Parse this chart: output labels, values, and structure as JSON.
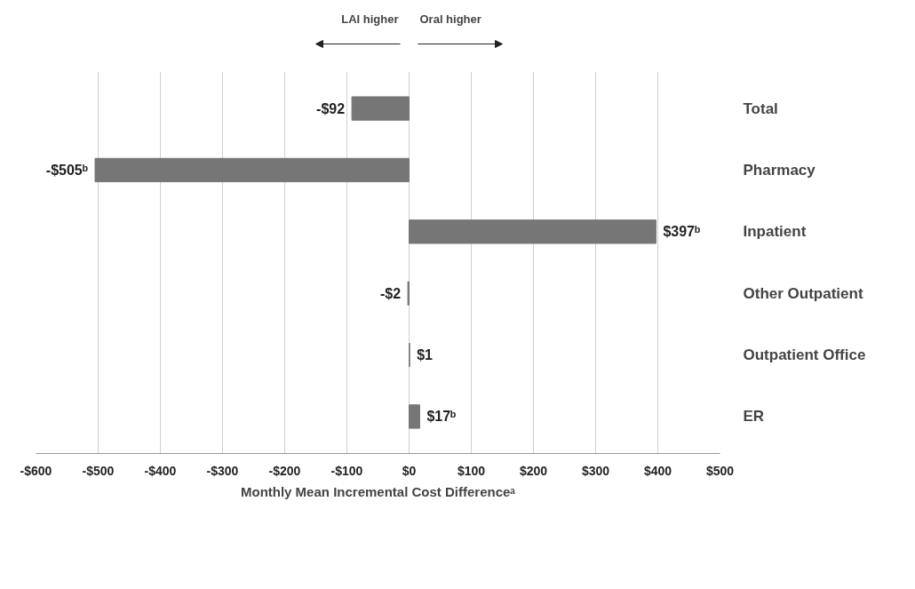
{
  "chart_data": {
    "type": "bar",
    "orientation": "horizontal",
    "xlabel": "Monthly Mean Incremental Cost Differenceᵃ",
    "categories": [
      "Total",
      "Pharmacy",
      "Inpatient",
      "Other Outpatient",
      "Outpatient Office",
      "ER"
    ],
    "values": [
      -92,
      -505,
      397,
      -2,
      1,
      17
    ],
    "value_labels": [
      "-$92",
      "-$505ᵇ",
      "$397ᵇ",
      "-$2",
      "$1",
      "$17ᵇ"
    ],
    "color": "#767676",
    "xlim": [
      -600,
      500
    ],
    "xticks": [
      {
        "value": -600,
        "label": "-$600"
      },
      {
        "value": -500,
        "label": "-$500"
      },
      {
        "value": -400,
        "label": "-$400"
      },
      {
        "value": -300,
        "label": "-$300"
      },
      {
        "value": -200,
        "label": "-$200"
      },
      {
        "value": -100,
        "label": "-$100"
      },
      {
        "value": 0,
        "label": "$0"
      },
      {
        "value": 100,
        "label": "$100"
      },
      {
        "value": 200,
        "label": "$200"
      },
      {
        "value": 300,
        "label": "$300"
      },
      {
        "value": 400,
        "label": "$400"
      },
      {
        "value": 500,
        "label": "$500"
      }
    ],
    "grid": "x",
    "annotations": [
      "LAI higher",
      "Oral higher"
    ]
  }
}
